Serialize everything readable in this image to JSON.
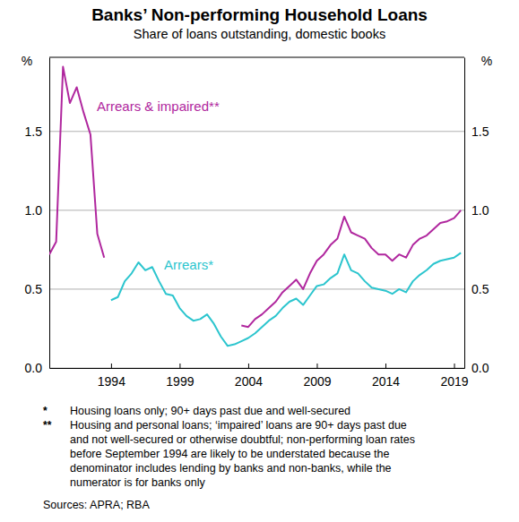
{
  "chart_data": {
    "type": "line",
    "title": "Banks’ Non-performing Household Loans",
    "subtitle": "Share of loans outstanding, domestic books",
    "y_unit": "%",
    "x": [
      1989.5,
      1990,
      1990.5,
      1991,
      1991.5,
      1992,
      1992.5,
      1993,
      1993.5,
      1994,
      1994.5,
      1995,
      1995.5,
      1996,
      1996.5,
      1997,
      1997.5,
      1998,
      1998.5,
      1999,
      1999.5,
      2000,
      2000.5,
      2001,
      2001.5,
      2002,
      2002.5,
      2003,
      2003.5,
      2004,
      2004.5,
      2005,
      2005.5,
      2006,
      2006.5,
      2007,
      2007.5,
      2008,
      2008.5,
      2009,
      2009.5,
      2010,
      2010.5,
      2011,
      2011.5,
      2012,
      2012.5,
      2013,
      2013.5,
      2014,
      2014.5,
      2015,
      2015.5,
      2016,
      2016.5,
      2017,
      2017.5,
      2018,
      2018.5,
      2019,
      2019.5
    ],
    "series": [
      {
        "name": "Arrears & impaired**",
        "color": "#b0279e",
        "values": [
          0.72,
          0.8,
          1.91,
          1.68,
          1.78,
          1.62,
          1.48,
          0.85,
          0.7,
          null,
          null,
          null,
          null,
          null,
          null,
          null,
          null,
          null,
          null,
          null,
          null,
          null,
          null,
          null,
          null,
          null,
          null,
          null,
          0.27,
          0.26,
          0.31,
          0.34,
          0.38,
          0.42,
          0.48,
          0.52,
          0.56,
          0.5,
          0.6,
          0.68,
          0.72,
          0.78,
          0.82,
          0.96,
          0.86,
          0.84,
          0.82,
          0.76,
          0.72,
          0.72,
          0.68,
          0.72,
          0.7,
          0.78,
          0.82,
          0.84,
          0.88,
          0.92,
          0.93,
          0.95,
          1.0
        ]
      },
      {
        "name": "Arrears*",
        "color": "#2cc5ce",
        "values": [
          null,
          null,
          null,
          null,
          null,
          null,
          null,
          null,
          null,
          0.43,
          0.45,
          0.55,
          0.6,
          0.67,
          0.62,
          0.64,
          0.55,
          0.47,
          0.46,
          0.38,
          0.33,
          0.3,
          0.31,
          0.34,
          0.28,
          0.2,
          0.14,
          0.15,
          0.17,
          0.19,
          0.22,
          0.26,
          0.3,
          0.33,
          0.38,
          0.42,
          0.44,
          0.4,
          0.46,
          0.52,
          0.53,
          0.57,
          0.6,
          0.72,
          0.62,
          0.6,
          0.55,
          0.51,
          0.5,
          0.49,
          0.47,
          0.5,
          0.48,
          0.55,
          0.59,
          0.62,
          0.66,
          0.68,
          0.69,
          0.7,
          0.73
        ]
      }
    ],
    "xlim": [
      1989.5,
      2019.75
    ],
    "xticks": [
      1994,
      1999,
      2004,
      2009,
      2014,
      2019
    ],
    "ylim": [
      0,
      1.97
    ],
    "yticks": [
      {
        "value": 0,
        "label": "0.0"
      },
      {
        "value": 0.5,
        "label": "0.5"
      },
      {
        "value": 1,
        "label": "1.0"
      },
      {
        "value": 1.5,
        "label": "1.5"
      }
    ],
    "grid": true,
    "notes": [
      {
        "symbol": "*",
        "lines": [
          "Housing loans only; 90+ days past due and well-secured"
        ]
      },
      {
        "symbol": "**",
        "lines": [
          "Housing and personal loans; ‘impaired’ loans are 90+ days past due",
          "and not well-secured or otherwise doubtful; non-performing loan rates",
          "before September 1994 are likely to be understated because the",
          "denominator includes lending by banks and non-banks, while the",
          "numerator is for banks only"
        ]
      }
    ],
    "source": "Sources: APRA; RBA"
  }
}
